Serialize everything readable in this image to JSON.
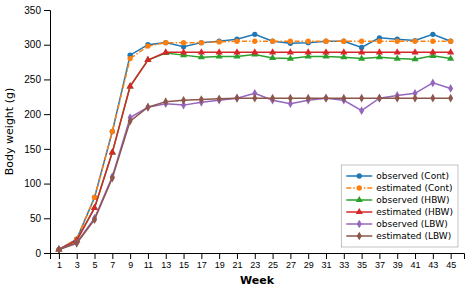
{
  "chart_data": {
    "type": "line",
    "xlabel": "Week",
    "ylabel": "Body weight (g)",
    "x": [
      1,
      3,
      5,
      7,
      9,
      11,
      13,
      15,
      17,
      19,
      21,
      23,
      25,
      27,
      29,
      31,
      33,
      35,
      37,
      39,
      41,
      43,
      45
    ],
    "xlim": [
      0,
      46.5
    ],
    "xticks": [
      1,
      3,
      5,
      7,
      9,
      11,
      13,
      15,
      17,
      19,
      21,
      23,
      25,
      27,
      29,
      31,
      33,
      35,
      37,
      39,
      41,
      43,
      45
    ],
    "ylim": [
      0,
      350
    ],
    "yticks": [
      0,
      50,
      100,
      150,
      200,
      250,
      300,
      350
    ],
    "grid": false,
    "legend": "lower right",
    "series": [
      {
        "name": "observed (Cont)",
        "marker": "circle",
        "line_style": "solid",
        "values": [
          5,
          20,
          80,
          175,
          285,
          300,
          303,
          297,
          303,
          305,
          308,
          315,
          305,
          302,
          303,
          305,
          305,
          296,
          310,
          308,
          306,
          315,
          305
        ]
      },
      {
        "name": "estimated (Cont)",
        "marker": "circle",
        "line_style": "dashdot",
        "values": [
          5,
          20,
          80,
          175,
          280,
          298,
          303,
          303,
          303,
          304,
          305,
          305,
          305,
          305,
          305,
          305,
          305,
          305,
          305,
          305,
          305,
          305,
          305
        ]
      },
      {
        "name": "observed (HBW)",
        "marker": "triangle",
        "line_style": "solid",
        "values": [
          5,
          18,
          65,
          145,
          240,
          278,
          288,
          285,
          282,
          283,
          283,
          286,
          281,
          280,
          283,
          283,
          282,
          280,
          282,
          280,
          279,
          284,
          280
        ]
      },
      {
        "name": "estimated (HBW)",
        "marker": "triangle",
        "line_style": "solid",
        "values": [
          5,
          18,
          65,
          145,
          240,
          278,
          289,
          289,
          289,
          289,
          289,
          289,
          289,
          289,
          289,
          289,
          289,
          289,
          289,
          289,
          289,
          289,
          289
        ]
      },
      {
        "name": "observed (LBW)",
        "marker": "diamond",
        "line_style": "solid",
        "values": [
          5,
          15,
          50,
          110,
          195,
          210,
          215,
          213,
          217,
          220,
          223,
          230,
          220,
          215,
          220,
          223,
          220,
          205,
          223,
          227,
          230,
          245,
          237
        ]
      },
      {
        "name": "estimated (LBW)",
        "marker": "diamond",
        "line_style": "solid",
        "values": [
          5,
          14,
          48,
          108,
          190,
          210,
          218,
          220,
          221,
          222,
          223,
          223,
          223,
          223,
          223,
          223,
          223,
          223,
          223,
          223,
          223,
          223,
          223
        ]
      }
    ]
  }
}
